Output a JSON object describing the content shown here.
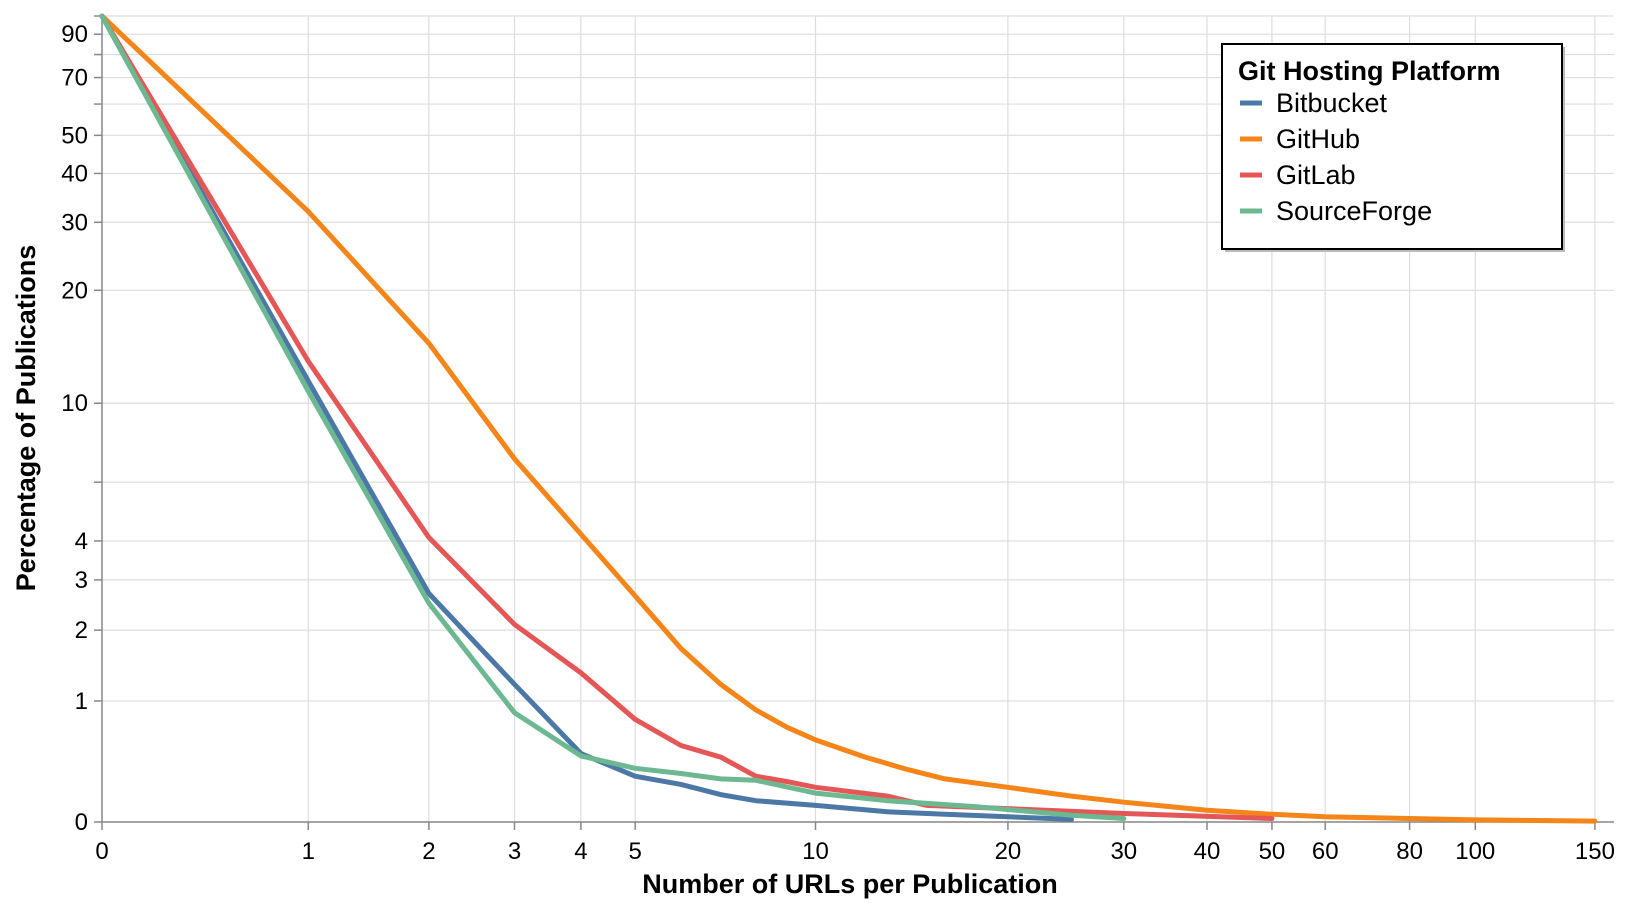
{
  "chart_data": {
    "type": "line",
    "title": "",
    "xlabel": "Number of URLs per Publication",
    "ylabel": "Percentage of Publications",
    "x_scale": "symlog",
    "y_scale": "symlog",
    "xlim": [
      0,
      160
    ],
    "ylim": [
      0,
      100
    ],
    "x_ticks": [
      0,
      1,
      2,
      3,
      4,
      5,
      10,
      20,
      30,
      40,
      50,
      60,
      80,
      100,
      150
    ],
    "y_ticks": [
      0,
      1,
      2,
      3,
      4,
      10,
      20,
      30,
      40,
      50,
      70,
      90
    ],
    "x_grid": [
      0,
      1,
      2,
      3,
      4,
      5,
      10,
      20,
      30,
      40,
      50,
      60,
      80,
      100,
      150
    ],
    "y_grid": [
      0,
      1,
      2,
      3,
      4,
      6,
      10,
      20,
      30,
      40,
      50,
      60,
      70,
      80,
      90,
      100
    ],
    "grid": true,
    "legend": {
      "title": "Git Hosting Platform",
      "position": "top-right"
    },
    "series": [
      {
        "name": "Bitbucket",
        "color": "#4c78a8",
        "points": [
          [
            0,
            100
          ],
          [
            1,
            11.5
          ],
          [
            2,
            2.7
          ],
          [
            3,
            1.2
          ],
          [
            4,
            0.48
          ],
          [
            5,
            0.3
          ],
          [
            6,
            0.24
          ],
          [
            7,
            0.17
          ],
          [
            8,
            0.13
          ],
          [
            10,
            0.1
          ],
          [
            13,
            0.06
          ],
          [
            16,
            0.045
          ],
          [
            20,
            0.03
          ],
          [
            25,
            0.015
          ]
        ]
      },
      {
        "name": "GitHub",
        "color": "#f58518",
        "points": [
          [
            0,
            100
          ],
          [
            1,
            32
          ],
          [
            2,
            14.5
          ],
          [
            3,
            7
          ],
          [
            4,
            4.2
          ],
          [
            5,
            2.65
          ],
          [
            6,
            1.7
          ],
          [
            7,
            1.2
          ],
          [
            8,
            0.9
          ],
          [
            9,
            0.72
          ],
          [
            10,
            0.6
          ],
          [
            12,
            0.45
          ],
          [
            14,
            0.35
          ],
          [
            16,
            0.28
          ],
          [
            20,
            0.22
          ],
          [
            25,
            0.16
          ],
          [
            30,
            0.12
          ],
          [
            40,
            0.07
          ],
          [
            50,
            0.045
          ],
          [
            60,
            0.03
          ],
          [
            80,
            0.02
          ],
          [
            100,
            0.012
          ],
          [
            150,
            0.005
          ]
        ]
      },
      {
        "name": "GitLab",
        "color": "#e45756",
        "points": [
          [
            0,
            100
          ],
          [
            1,
            13
          ],
          [
            2,
            4.1
          ],
          [
            3,
            2.1
          ],
          [
            4,
            1.35
          ],
          [
            5,
            0.8
          ],
          [
            6,
            0.55
          ],
          [
            7,
            0.45
          ],
          [
            8,
            0.3
          ],
          [
            9,
            0.26
          ],
          [
            10,
            0.22
          ],
          [
            13,
            0.16
          ],
          [
            15,
            0.1
          ],
          [
            20,
            0.08
          ],
          [
            30,
            0.05
          ],
          [
            50,
            0.02
          ]
        ]
      },
      {
        "name": "SourceForge",
        "color": "#72b7b2",
        "stroke": "#6cb891",
        "points": [
          [
            0,
            100
          ],
          [
            1,
            10.8
          ],
          [
            2,
            2.5
          ],
          [
            3,
            0.87
          ],
          [
            4,
            0.46
          ],
          [
            5,
            0.36
          ],
          [
            6,
            0.32
          ],
          [
            7,
            0.28
          ],
          [
            8,
            0.27
          ],
          [
            10,
            0.18
          ],
          [
            13,
            0.13
          ],
          [
            18,
            0.09
          ],
          [
            25,
            0.04
          ],
          [
            30,
            0.02
          ]
        ]
      }
    ]
  }
}
